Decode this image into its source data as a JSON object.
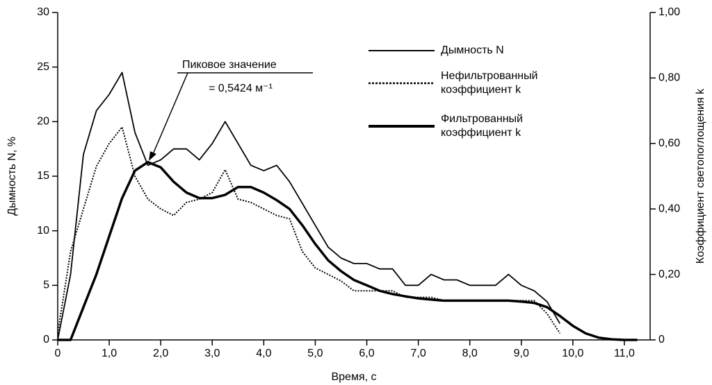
{
  "chart_data": {
    "type": "line",
    "xlabel": "Время, с",
    "ylabel": "Дымность N, %",
    "y2label": "Коэффициент светопоглощения k",
    "annotations": [
      "Пиковое значение",
      "= 0,5424 м⁻¹"
    ],
    "x": [
      0,
      0.25,
      0.5,
      0.75,
      1,
      1.25,
      1.5,
      1.75,
      2,
      2.25,
      2.5,
      2.75,
      3,
      3.25,
      3.5,
      3.75,
      4,
      4.25,
      4.5,
      4.75,
      5,
      5.25,
      5.5,
      5.75,
      6,
      6.25,
      6.5,
      6.75,
      7,
      7.25,
      7.5,
      7.75,
      8,
      8.25,
      8.5,
      8.75,
      9,
      9.25,
      9.5,
      9.75,
      10,
      10.25,
      10.5,
      10.75,
      11,
      11.25,
      11.5
    ],
    "series": [
      {
        "name": "Дымность N",
        "color": "#000000",
        "style": "solid",
        "values": [
          0,
          6,
          17,
          21,
          22.5,
          24.5,
          19,
          16,
          16.5,
          17.5,
          17.5,
          16.5,
          18,
          20,
          18,
          16,
          15.5,
          16,
          14.5,
          12.5,
          10.5,
          8.5,
          7.5,
          7,
          7,
          6.5,
          6.5,
          5,
          5,
          6,
          5.5,
          5.5,
          5,
          5,
          5,
          6,
          5,
          4.5,
          3.5,
          1.5,
          null,
          null,
          null,
          null,
          null,
          null,
          null
        ]
      },
      {
        "name": "Нефильтрованный коэффициент k",
        "color": "#000000",
        "style": "dotted",
        "axis": "y2",
        "values": [
          0.02,
          0.27,
          0.4,
          0.53,
          0.6,
          0.65,
          0.5,
          0.43,
          0.4,
          0.38,
          0.42,
          0.43,
          0.45,
          0.52,
          0.43,
          0.42,
          0.4,
          0.38,
          0.37,
          0.27,
          0.22,
          0.2,
          0.18,
          0.15,
          0.15,
          0.15,
          0.15,
          0.13,
          0.13,
          0.13,
          0.12,
          0.12,
          0.12,
          0.12,
          0.12,
          0.12,
          0.12,
          0.12,
          0.08,
          0.02,
          null,
          null,
          null,
          null,
          null,
          null,
          null
        ]
      },
      {
        "name": "Фильтрованный коэффициент k",
        "color": "#000000",
        "style": "thick",
        "axis": "y2",
        "values": [
          0,
          0,
          0.1,
          0.2,
          0.317,
          0.433,
          0.517,
          0.543,
          0.527,
          0.483,
          0.45,
          0.433,
          0.433,
          0.443,
          0.467,
          0.467,
          0.45,
          0.427,
          0.4,
          0.35,
          0.293,
          0.243,
          0.21,
          0.183,
          0.167,
          0.15,
          0.14,
          0.133,
          0.127,
          0.123,
          0.12,
          0.12,
          0.12,
          0.12,
          0.12,
          0.12,
          0.117,
          0.113,
          0.1,
          0.073,
          0.043,
          0.02,
          0.007,
          0.002,
          0,
          0,
          null
        ]
      }
    ],
    "xlim": [
      0,
      11.5
    ],
    "xticks": [
      0,
      {
        "value": 1,
        "label": "1,0"
      },
      {
        "value": 2,
        "label": "2,0"
      },
      {
        "value": 3,
        "label": "3,0"
      },
      {
        "value": 4,
        "label": "4,0"
      },
      {
        "value": 5,
        "label": "5,0"
      },
      {
        "value": 6,
        "label": "6,0"
      },
      {
        "value": 7,
        "label": "7,0"
      },
      {
        "value": 8,
        "label": "8,0"
      },
      {
        "value": 9,
        "label": "9,0"
      },
      {
        "value": 10,
        "label": "10,0"
      },
      {
        "value": 11,
        "label": "11,0"
      }
    ],
    "ylim": [
      0,
      30
    ],
    "yticks": [
      0,
      5,
      10,
      15,
      20,
      25,
      30
    ],
    "y2lim": [
      0,
      1
    ],
    "y2ticks": [
      0,
      {
        "value": 0.2,
        "label": "0,20"
      },
      {
        "value": 0.4,
        "label": "0,40"
      },
      {
        "value": 0.6,
        "label": "0,60"
      },
      {
        "value": 0.8,
        "label": "0,80"
      },
      {
        "value": 1,
        "label": "1,00"
      }
    ]
  }
}
